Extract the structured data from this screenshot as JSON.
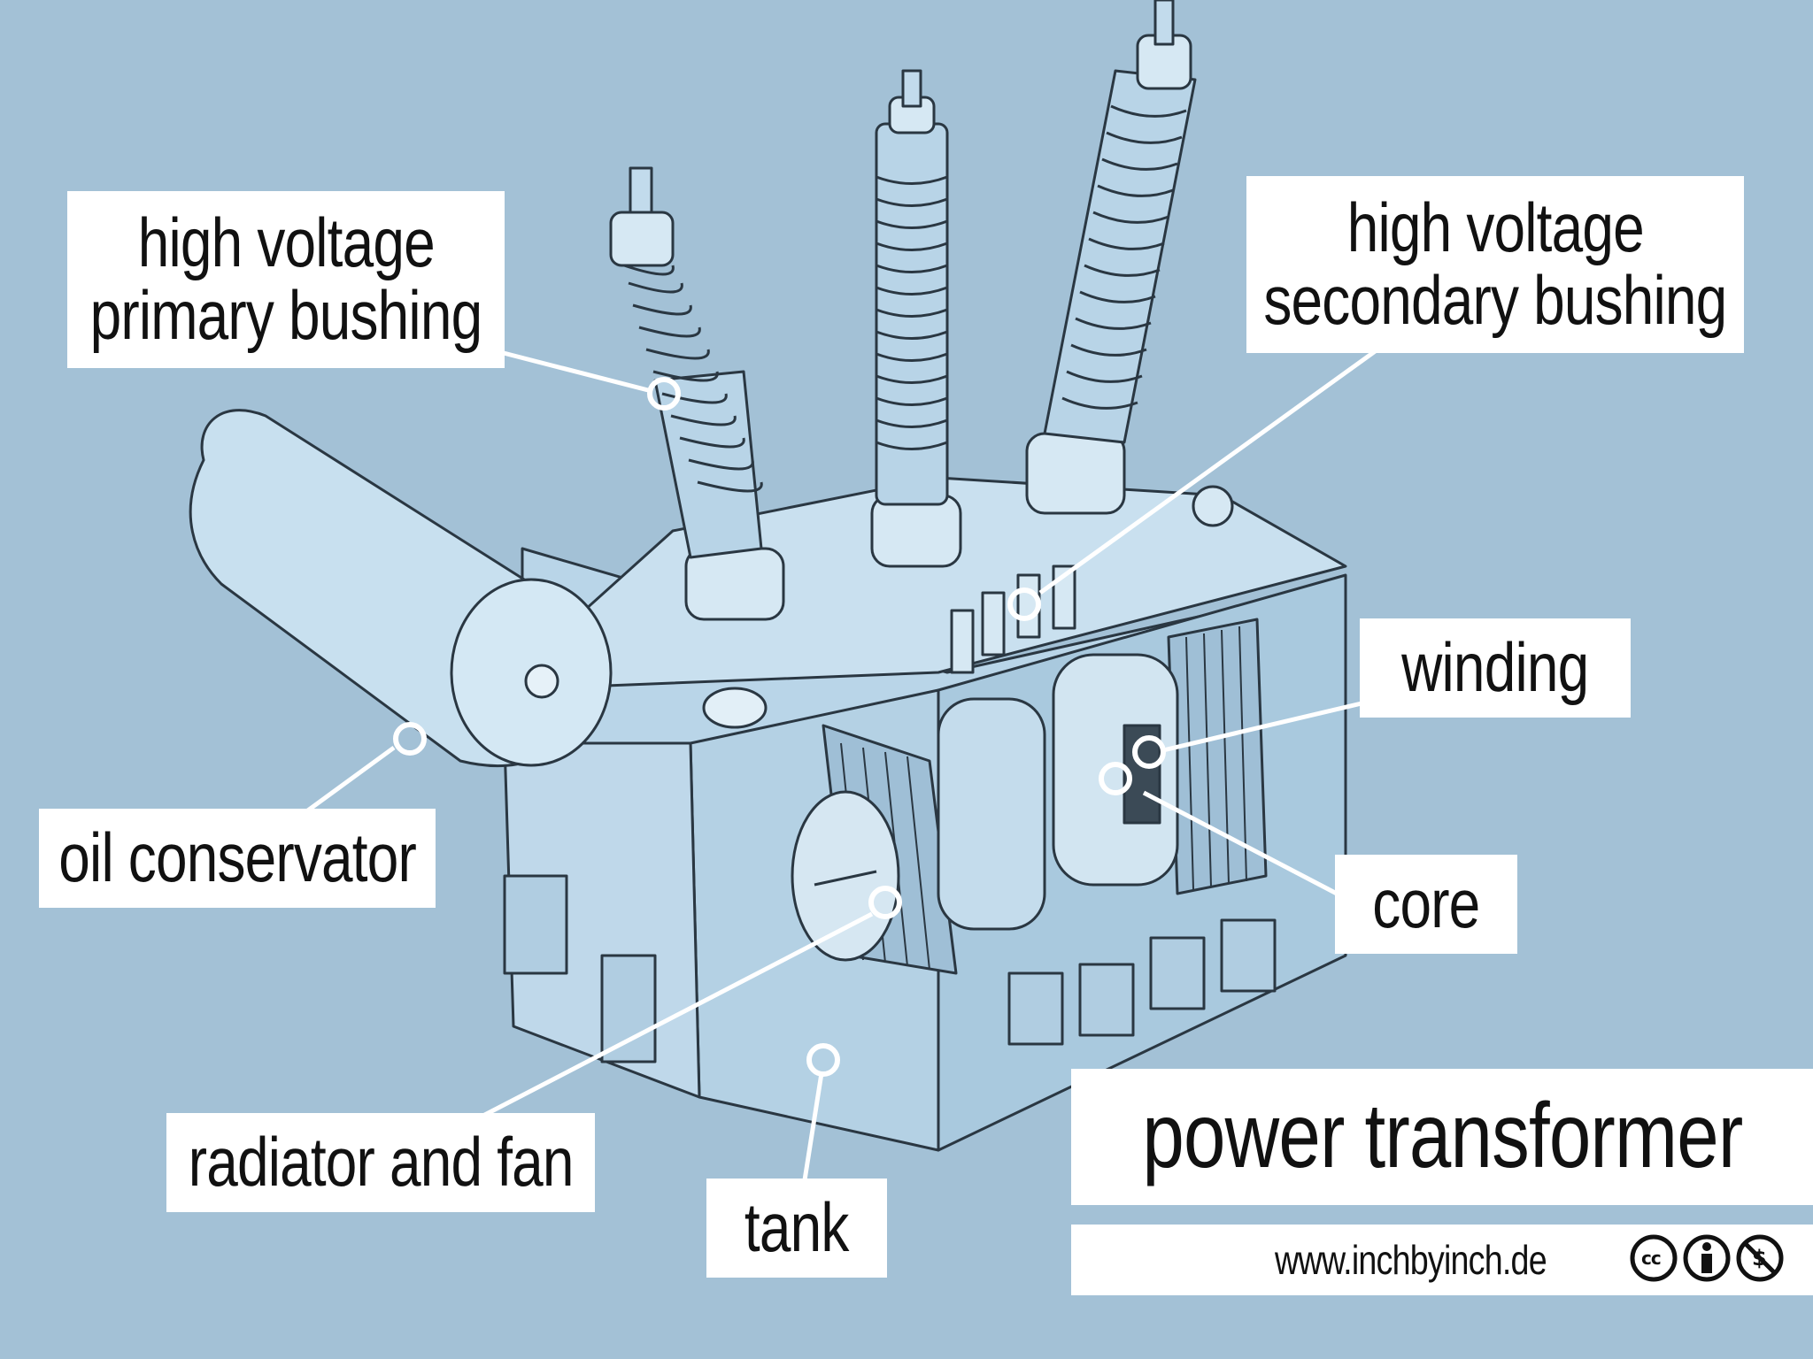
{
  "title": "power transformer",
  "website": "www.inchbyinch.de",
  "license_icons": [
    "cc-icon",
    "by-attribution-icon",
    "non-commercial-icon"
  ],
  "labels": {
    "primary_bushing_1": "high voltage",
    "primary_bushing_2": "primary bushing",
    "secondary_bushing_1": "high voltage",
    "secondary_bushing_2": "secondary bushing",
    "oil_conservator": "oil conservator",
    "winding": "winding",
    "core": "core",
    "radiator_and_fan": "radiator and fan",
    "tank": "tank"
  },
  "colors": {
    "background": "#a3c1d6",
    "label_bg": "#ffffff",
    "ink": "#1a1a1a"
  }
}
